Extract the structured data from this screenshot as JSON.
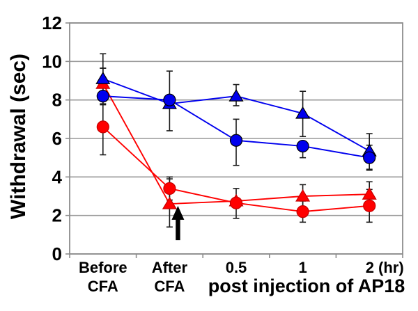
{
  "figure": {
    "description": "Line chart of paw withdrawal latency before/after CFA and after AP18 injection"
  },
  "colors": {
    "blue": "#0000EE",
    "red": "#FF0000",
    "grid": "#999999",
    "axis": "#8c8c8c",
    "error_bar": "#1a1a1a",
    "arrow": "#000000",
    "text": "#000000",
    "background": "#FFFFFF"
  },
  "chart_data": {
    "type": "line",
    "title": "",
    "ylabel": "Withdrawal (sec)",
    "xlabel": "post injection of AP18",
    "ylim": [
      0,
      12
    ],
    "yticks": [
      0,
      2,
      4,
      6,
      8,
      10,
      12
    ],
    "grid": true,
    "legend": "none",
    "categories": [
      "Before CFA",
      "After CFA",
      "0.5",
      "1",
      "2 (hr)"
    ],
    "x_tick_line1": [
      "Before",
      "After",
      "0.5",
      "1",
      "2 (hr)"
    ],
    "x_tick_line2": [
      "CFA",
      "CFA",
      "",
      "",
      ""
    ],
    "series": [
      {
        "name": "red-triangle",
        "marker": "triangle",
        "color": "#FF0000",
        "values": [
          8.85,
          2.6,
          2.75,
          3.0,
          3.1
        ],
        "err_up": [
          0.8,
          1.3,
          0.0,
          0.6,
          0.65
        ],
        "err_down": [
          0.8,
          1.2,
          0.0,
          0.6,
          0.65
        ]
      },
      {
        "name": "red-circle",
        "marker": "circle",
        "color": "#FF0000",
        "values": [
          6.6,
          3.4,
          2.65,
          2.2,
          2.5
        ],
        "err_up": [
          1.45,
          0.6,
          0.75,
          0.55,
          0.85
        ],
        "err_down": [
          1.45,
          0.6,
          0.8,
          0.55,
          0.85
        ]
      },
      {
        "name": "blue-triangle",
        "marker": "triangle",
        "color": "#0000EE",
        "values": [
          9.1,
          7.8,
          8.2,
          7.3,
          5.35
        ],
        "err_up": [
          1.3,
          0.0,
          0.6,
          1.15,
          0.9
        ],
        "err_down": [
          1.3,
          0.0,
          0.5,
          1.2,
          1.0
        ]
      },
      {
        "name": "blue-circle",
        "marker": "circle",
        "color": "#0000EE",
        "values": [
          8.2,
          8.0,
          5.9,
          5.6,
          5.0
        ],
        "err_up": [
          1.45,
          1.5,
          1.1,
          0.25,
          0.65
        ],
        "err_down": [
          0.45,
          1.6,
          1.3,
          0.6,
          0.6
        ]
      }
    ],
    "annotation_arrow": {
      "description": "black upward arrow marking injection time point",
      "category_index": 1,
      "tip_value": 2.5,
      "tail_value": 0.72
    }
  }
}
